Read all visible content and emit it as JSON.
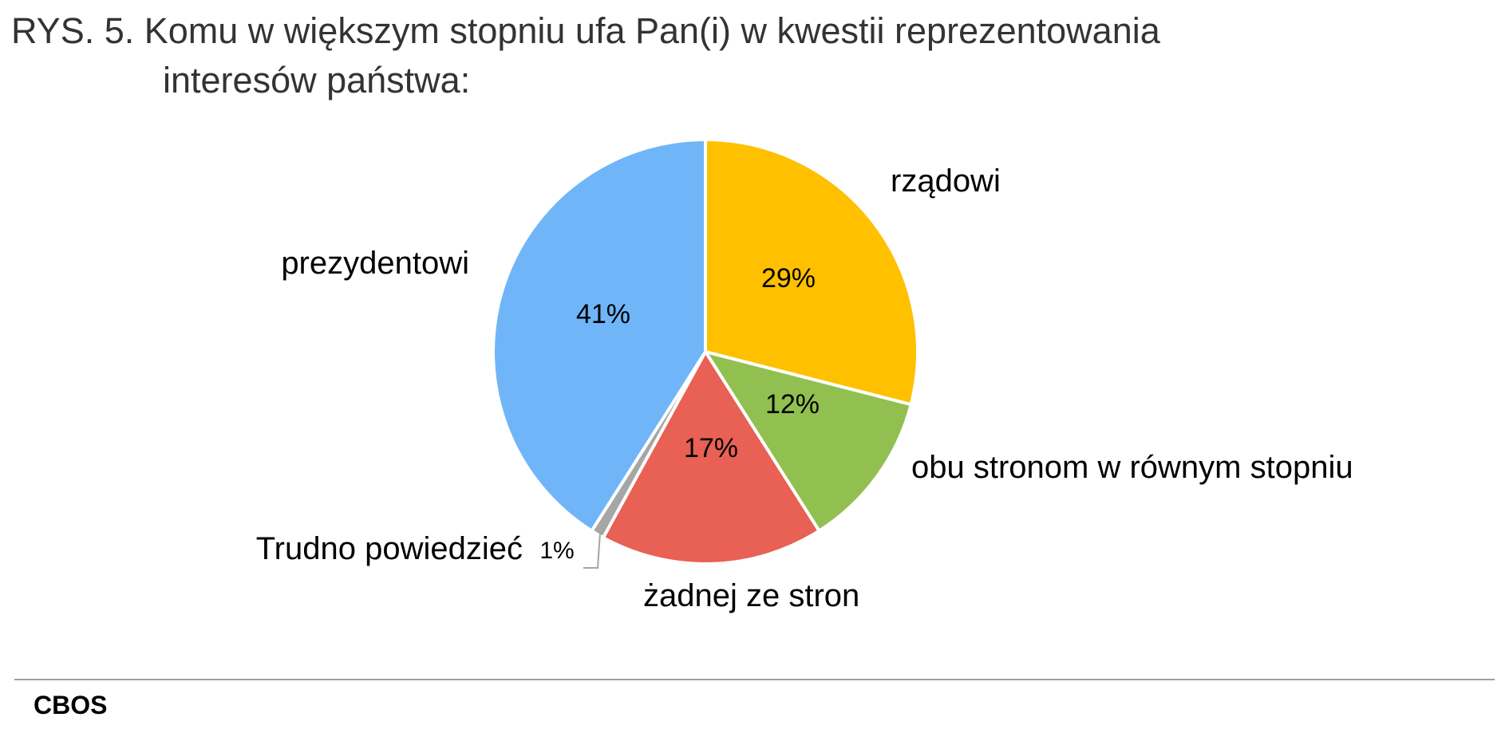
{
  "title_line1": "RYS. 5. Komu w większym stopniu ufa Pan(i) w kwestii reprezentowania",
  "title_line2": "interesów państwa:",
  "source": "CBOS",
  "chart_data": {
    "type": "pie",
    "title": "RYS. 5. Komu w większym stopniu ufa Pan(i) w kwestii reprezentowania interesów państwa:",
    "start": "12 o'clock, clockwise",
    "slices": [
      {
        "key": "rzadowi",
        "label": "rządowi",
        "value": 29,
        "value_label": "29%",
        "color": "#FFC000"
      },
      {
        "key": "obu",
        "label": "obu stronom w równym stopniu",
        "value": 12,
        "value_label": "12%",
        "color": "#92C050"
      },
      {
        "key": "zadnej",
        "label": "żadnej ze stron",
        "value": 17,
        "value_label": "17%",
        "color": "#E96054"
      },
      {
        "key": "trudno",
        "label": "Trudno powiedzieć",
        "value": 1,
        "value_label": "1%",
        "color": "#A6A6A6"
      },
      {
        "key": "prezydentowi",
        "label": "prezydentowi",
        "value": 41,
        "value_label": "41%",
        "color": "#70B5F8"
      }
    ]
  }
}
